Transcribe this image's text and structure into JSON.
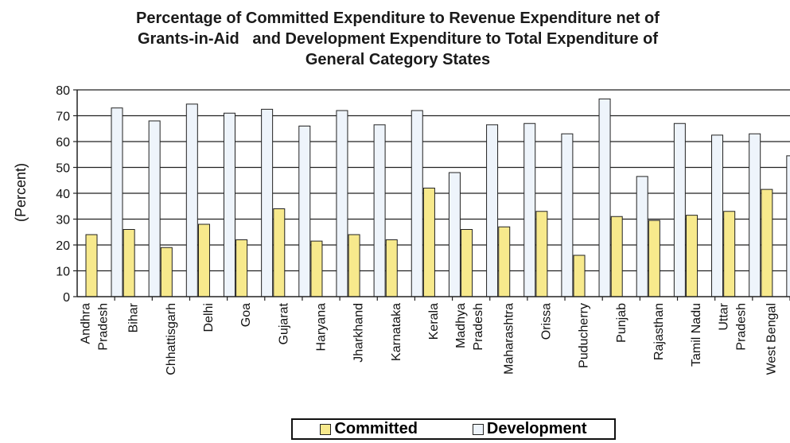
{
  "chart_data": {
    "type": "bar",
    "title_lines": [
      "Percentage of Committed Expenditure to Revenue Expenditure net of",
      "Grants-in-Aid   and Development Expenditure to Total Expenditure of",
      "General Category States"
    ],
    "ylabel": "(Percent)",
    "ylim": [
      0,
      80
    ],
    "yticks": [
      "0",
      "10",
      "20",
      "30",
      "40",
      "50",
      "60",
      "70",
      "80"
    ],
    "grid": true,
    "legend_position": "bottom",
    "categories": [
      [
        "Andhra",
        "Pradesh"
      ],
      [
        "Bihar"
      ],
      [
        "Chhattisgarh"
      ],
      [
        "Delhi"
      ],
      [
        "Goa"
      ],
      [
        "Gujarat"
      ],
      [
        "Haryana"
      ],
      [
        "Jharkhand"
      ],
      [
        "Karnataka"
      ],
      [
        "Kerala"
      ],
      [
        "Madhya",
        "Pradesh"
      ],
      [
        "Maharashtra"
      ],
      [
        "Orissa"
      ],
      [
        "Puducherry"
      ],
      [
        "Punjab"
      ],
      [
        "Rajasthan"
      ],
      [
        "Tamil Nadu"
      ],
      [
        "Uttar",
        "Pradesh"
      ],
      [
        "West Bengal"
      ]
    ],
    "series": [
      {
        "name": "Committed",
        "color": "#f7e98c",
        "values": [
          24,
          26,
          19,
          28,
          22,
          34,
          21.5,
          24,
          22,
          42,
          26,
          27,
          33,
          16,
          31,
          29.5,
          31.5,
          33,
          41.5
        ]
      },
      {
        "name": "Development",
        "color": "#eef4fb",
        "values": [
          73,
          68,
          74.5,
          71,
          72.5,
          66,
          72,
          66.5,
          72,
          48,
          66.5,
          67,
          63,
          76.5,
          46.5,
          67,
          62.5,
          63,
          54.5
        ]
      }
    ]
  }
}
